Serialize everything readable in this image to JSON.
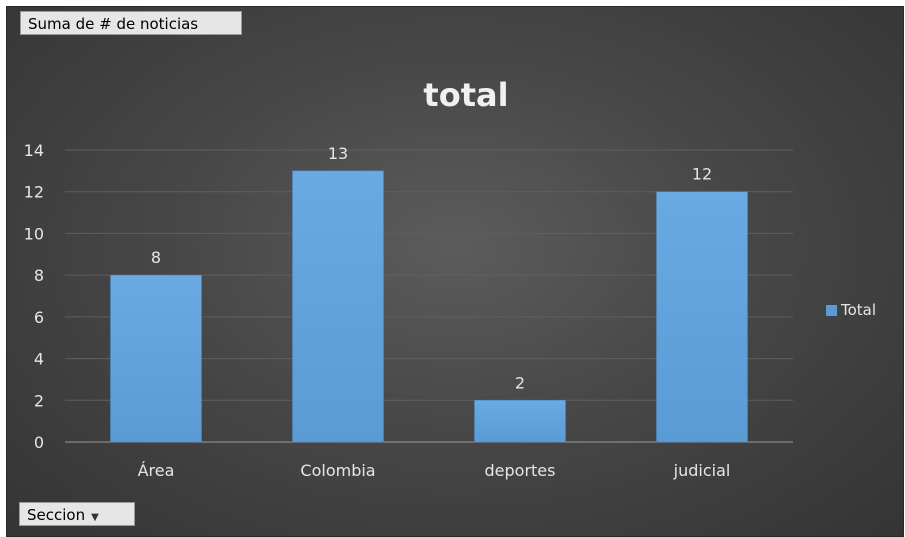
{
  "pivot": {
    "value_field_label": "Suma de # de noticias",
    "axis_field_label": "Seccion",
    "axis_field_arrow": "▼"
  },
  "chart_data": {
    "type": "bar",
    "title": "total",
    "categories": [
      "Área",
      "Colombia",
      "deportes",
      "judicial"
    ],
    "series": [
      {
        "name": "Total",
        "values": [
          8,
          13,
          2,
          12
        ]
      }
    ],
    "ylim": [
      0,
      14
    ],
    "yticks": [
      0,
      2,
      4,
      6,
      8,
      10,
      12,
      14
    ],
    "grid": true,
    "legend_position": "right",
    "data_labels": true
  },
  "colors": {
    "bar": "#5b9bd5",
    "bar_light": "#6aaae3",
    "text": "#e6e6e6",
    "grid": "#5f5f5f",
    "axis": "#9a9a9a"
  }
}
